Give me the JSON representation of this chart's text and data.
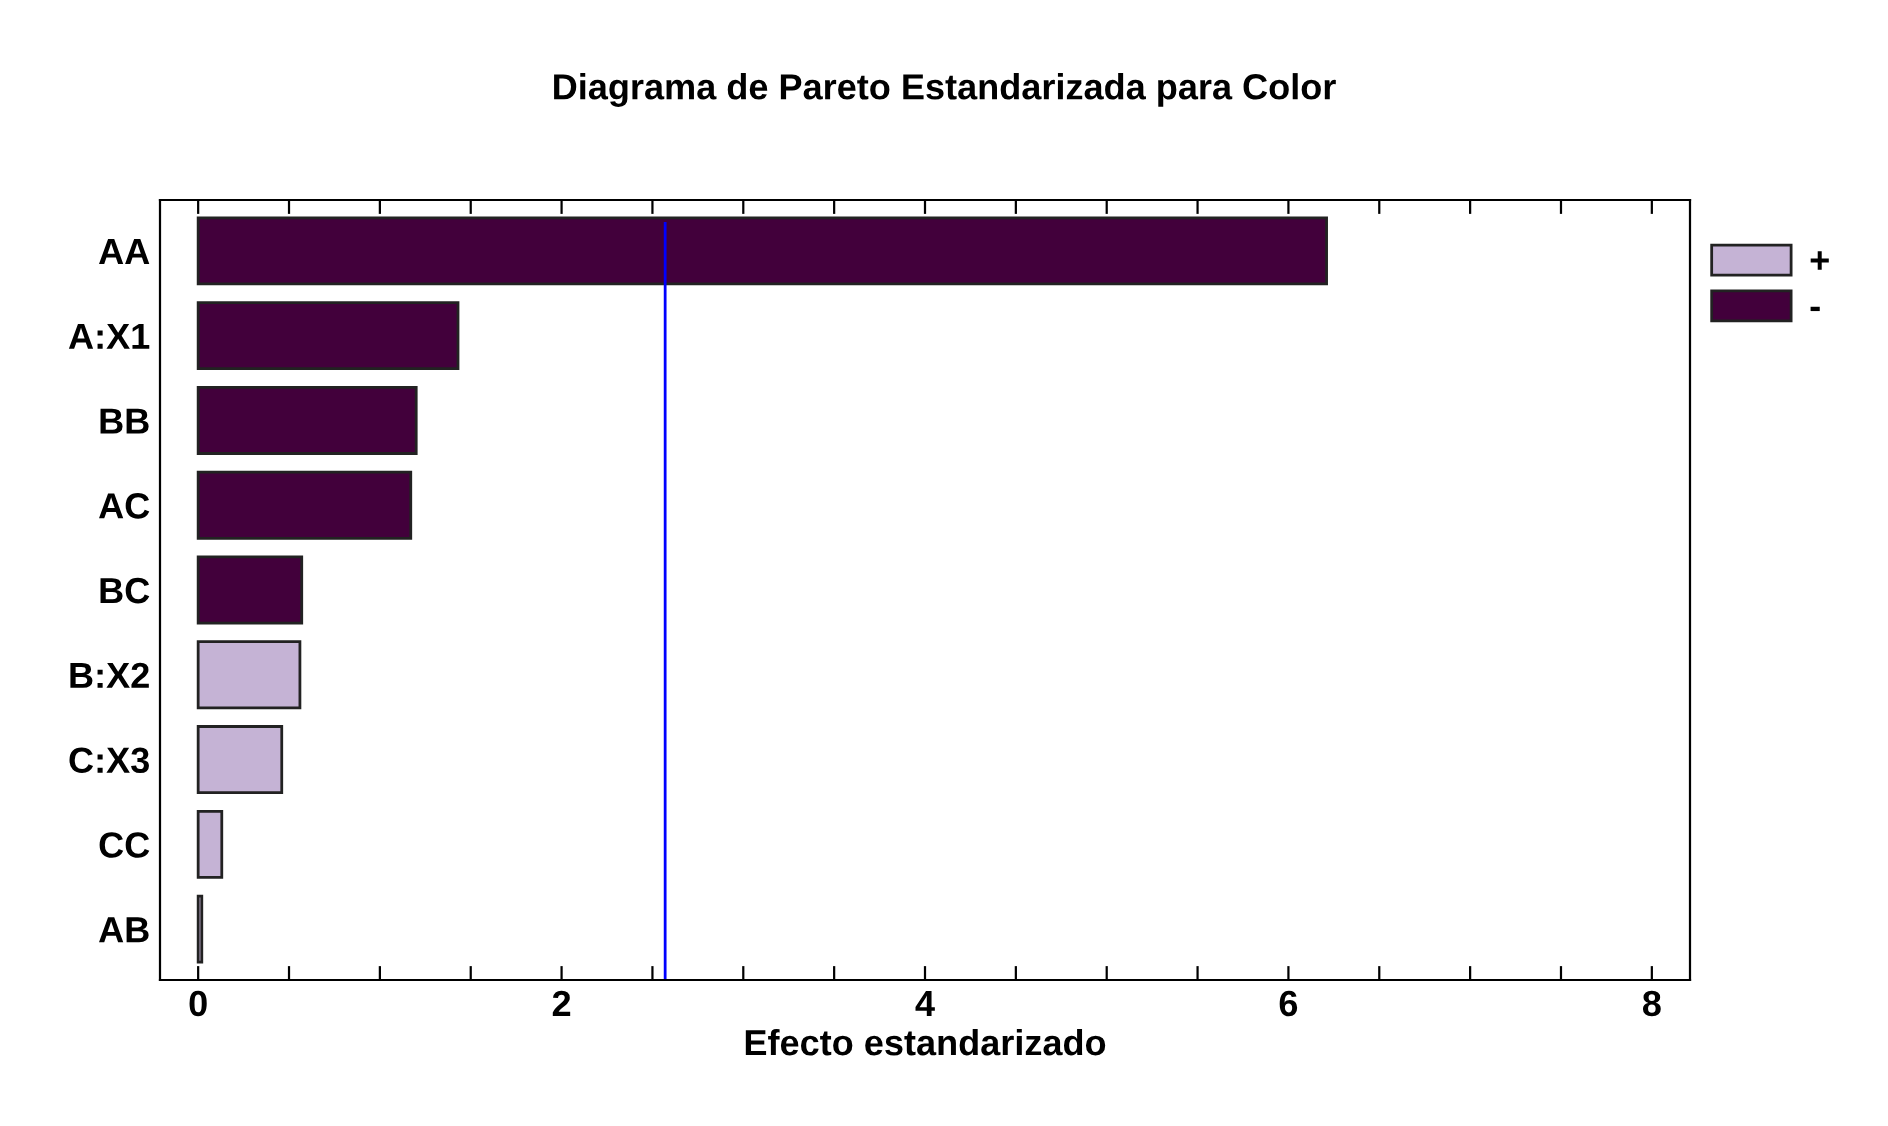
{
  "chart_data": {
    "type": "bar",
    "orientation": "horizontal",
    "title": "Diagrama de Pareto Estandarizada para Color",
    "xlabel": "Efecto estandarizado",
    "categories": [
      "AA",
      "A:X1",
      "BB",
      "AC",
      "BC",
      "B:X2",
      "C:X3",
      "CC",
      "AB"
    ],
    "series": [
      {
        "name": "+",
        "color": "#c5b3d5",
        "values": [
          null,
          null,
          null,
          null,
          null,
          0.56,
          0.46,
          0.13,
          0.02
        ]
      },
      {
        "name": "-",
        "color": "#42003b",
        "values": [
          6.21,
          1.43,
          1.2,
          1.17,
          0.57,
          null,
          null,
          null,
          null
        ]
      }
    ],
    "xlim": [
      -0.21,
      8.21
    ],
    "xticks": [
      0,
      {
        "value": 0.5,
        "label": null
      },
      {
        "value": 1,
        "label": null
      },
      {
        "value": 1.5,
        "label": null
      },
      2,
      {
        "value": 2.5,
        "label": null
      },
      {
        "value": 3,
        "label": null
      },
      {
        "value": 3.5,
        "label": null
      },
      4,
      {
        "value": 4.5,
        "label": null
      },
      {
        "value": 5,
        "label": null
      },
      {
        "value": 5.5,
        "label": null
      },
      6,
      {
        "value": 6.5,
        "label": null
      },
      {
        "value": 7,
        "label": null
      },
      {
        "value": 7.5,
        "label": null
      },
      8
    ],
    "ref_lines": [
      {
        "axis": "x",
        "value": 2.57,
        "color": "#0000ff"
      }
    ],
    "grid": false,
    "legend": "top right"
  }
}
